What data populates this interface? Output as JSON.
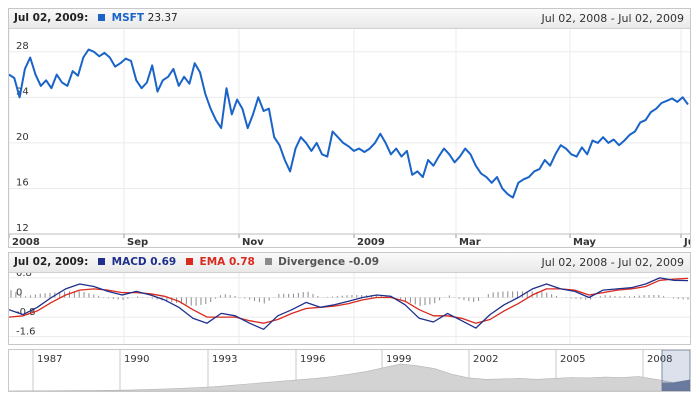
{
  "main_panel": {
    "header_date": "Jul 02, 2009:",
    "series_label": "MSFT",
    "series_value": "23.37",
    "series_color": "#1a64c8",
    "range_text": "Jul 02, 2008 - Jul 02, 2009"
  },
  "macd_panel": {
    "header_date": "Jul 02, 2009:",
    "macd_label": "MACD",
    "macd_value": "0.69",
    "macd_color": "#1f2f8c",
    "ema_label": "EMA",
    "ema_value": "0.78",
    "ema_color": "#d82a1e",
    "div_label": "Divergence",
    "div_value": "-0.09",
    "div_color": "#8a8a8a",
    "range_text": "Jul 02, 2008 - Jul 02, 2009"
  },
  "navigator": {
    "year_labels": [
      "1987",
      "1990",
      "1993",
      "1996",
      "1999",
      "2002",
      "2005",
      "2008"
    ]
  },
  "chart_data": [
    {
      "type": "line",
      "series": [
        {
          "name": "MSFT",
          "values": [
            26.0,
            25.7,
            24.0,
            26.5,
            27.5,
            26.0,
            25.0,
            25.5,
            24.8,
            26.0,
            25.3,
            25.0,
            26.3,
            25.9,
            27.5,
            28.2,
            28.0,
            27.6,
            27.9,
            27.5,
            26.7,
            27.0,
            27.4,
            27.2,
            25.5,
            24.8,
            25.3,
            26.8,
            24.5,
            25.5,
            25.8,
            26.5,
            25.0,
            25.8,
            25.2,
            27.0,
            26.2,
            24.3,
            23.0,
            22.0,
            21.3,
            24.8,
            22.5,
            23.8,
            23.0,
            21.3,
            22.5,
            24.0,
            22.8,
            23.0,
            20.5,
            19.8,
            18.5,
            17.5,
            19.5,
            20.5,
            20.0,
            19.3,
            20.0,
            19.0,
            18.8,
            21.0,
            20.5,
            20.0,
            19.7,
            19.3,
            19.5,
            19.2,
            19.5,
            20.0,
            20.8,
            20.0,
            19.0,
            19.5,
            18.8,
            19.3,
            17.2,
            17.5,
            17.0,
            18.5,
            18.0,
            18.8,
            19.5,
            19.0,
            18.3,
            18.8,
            19.5,
            19.0,
            18.0,
            17.3,
            17.0,
            16.5,
            17.0,
            16.0,
            15.5,
            15.2,
            16.5,
            16.8,
            17.0,
            17.5,
            17.7,
            18.5,
            18.0,
            19.0,
            19.8,
            19.5,
            19.0,
            18.8,
            19.6,
            19.0,
            20.2,
            20.0,
            20.5,
            20.0,
            20.3,
            19.8,
            20.2,
            20.7,
            21.0,
            21.8,
            22.0,
            22.7,
            23.0,
            23.5,
            23.7,
            23.9,
            23.6,
            24.0,
            23.37
          ]
        }
      ],
      "x_tick_labels": [
        "2008",
        "Sep",
        "Nov",
        "2009",
        "Mar",
        "May",
        "Ju"
      ],
      "y_tick_labels": [
        "28",
        "24",
        "20",
        "16",
        "12"
      ],
      "ylim": [
        12,
        30
      ],
      "grid": true
    },
    {
      "type": "line",
      "series": [
        {
          "name": "MACD",
          "values": [
            -0.5,
            -0.7,
            -0.4,
            0.0,
            0.35,
            0.55,
            0.45,
            0.25,
            0.1,
            0.25,
            0.1,
            -0.1,
            -0.4,
            -0.85,
            -1.05,
            -0.65,
            -0.75,
            -1.05,
            -1.3,
            -0.75,
            -0.5,
            -0.2,
            -0.4,
            -0.3,
            -0.15,
            0.0,
            0.1,
            0.05,
            -0.3,
            -0.85,
            -1.0,
            -0.65,
            -0.95,
            -1.25,
            -0.7,
            -0.3,
            0.0,
            0.35,
            0.55,
            0.35,
            0.25,
            0.0,
            0.3,
            0.35,
            0.4,
            0.55,
            0.8,
            0.7,
            0.69
          ]
        },
        {
          "name": "EMA",
          "values": [
            -0.8,
            -0.75,
            -0.55,
            -0.2,
            0.1,
            0.3,
            0.35,
            0.3,
            0.2,
            0.2,
            0.15,
            0.05,
            -0.15,
            -0.5,
            -0.8,
            -0.8,
            -0.8,
            -0.95,
            -1.05,
            -0.9,
            -0.65,
            -0.45,
            -0.4,
            -0.35,
            -0.25,
            -0.1,
            0.0,
            0.0,
            -0.15,
            -0.5,
            -0.75,
            -0.75,
            -0.85,
            -1.05,
            -0.9,
            -0.55,
            -0.25,
            0.1,
            0.35,
            0.35,
            0.3,
            0.1,
            0.2,
            0.3,
            0.35,
            0.45,
            0.7,
            0.75,
            0.78
          ]
        },
        {
          "name": "Divergence",
          "values": [
            0.3,
            0.05,
            0.15,
            0.2,
            0.25,
            0.25,
            0.1,
            -0.05,
            -0.1,
            0.05,
            -0.05,
            -0.15,
            -0.25,
            -0.35,
            -0.25,
            0.15,
            0.05,
            -0.1,
            -0.25,
            0.15,
            0.15,
            0.25,
            0.0,
            0.05,
            0.1,
            0.1,
            0.1,
            0.05,
            -0.15,
            -0.35,
            -0.25,
            0.1,
            -0.1,
            -0.2,
            0.2,
            0.25,
            0.25,
            0.25,
            0.2,
            0.0,
            -0.05,
            -0.1,
            0.1,
            0.05,
            0.05,
            0.1,
            0.1,
            -0.05,
            -0.09
          ]
        }
      ],
      "y_tick_labels": [
        "0.8",
        "0",
        "-0.8",
        "-1.6"
      ],
      "ylim": [
        -1.9,
        1.0
      ],
      "grid": true
    },
    {
      "type": "area",
      "x_tick_labels": [
        "1987",
        "1990",
        "1993",
        "1996",
        "1999",
        "2002",
        "2005",
        "2008"
      ],
      "values": [
        0.3,
        0.4,
        0.5,
        0.6,
        0.8,
        1.0,
        1.5,
        2.0,
        3.0,
        4.0,
        5.5,
        7.0,
        9.0,
        12.0,
        15.0,
        18.0,
        21.0,
        24.0,
        27.0,
        31.0,
        36.0,
        42.0,
        50.0,
        58.0,
        54.0,
        48.0,
        36.0,
        28.0,
        25.0,
        26.0,
        27.0,
        25.0,
        27.0,
        29.0,
        28.0,
        30.0,
        29.0,
        31.0,
        25.0,
        18.0,
        24.0
      ]
    }
  ]
}
